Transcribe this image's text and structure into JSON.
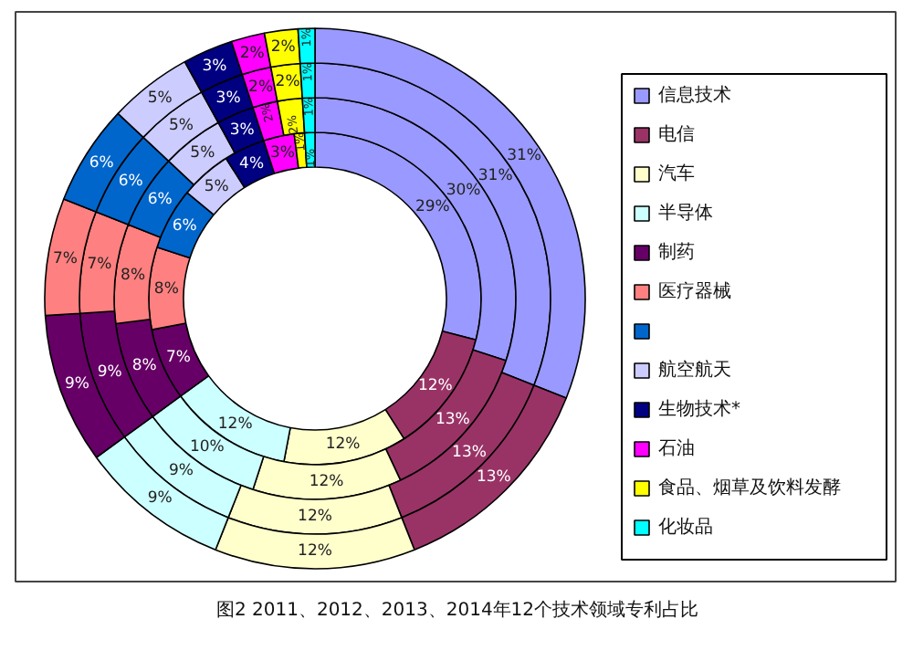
{
  "chart_data": {
    "type": "donut",
    "categories": [
      "信息技术",
      "电信",
      "汽车",
      "半导体",
      "制药",
      "医疗器械",
      null,
      "航空航天",
      "生物技术*",
      "石油",
      "食品、烟草及饮料发酵",
      "化妆品"
    ],
    "colors": [
      "#9999ff",
      "#993366",
      "#ffffcc",
      "#ccffff",
      "#660066",
      "#ff8080",
      "#0066cc",
      "#ccccff",
      "#000080",
      "#ff00ff",
      "#ffff00",
      "#00ffff"
    ],
    "series": [
      {
        "values": [
          29,
          12,
          12,
          12,
          7,
          8,
          6,
          5,
          4,
          3,
          1,
          1
        ],
        "value_labels": [
          "29%",
          "12%",
          "12%",
          "12%",
          "7%",
          "8%",
          "6%",
          "5%",
          "4%",
          "3%",
          "1%",
          "1%"
        ]
      },
      {
        "values": [
          30,
          13,
          12,
          10,
          8,
          8,
          6,
          5,
          3,
          2,
          2,
          1
        ],
        "value_labels": [
          "30%",
          "13%",
          "12%",
          "10%",
          "8%",
          "8%",
          "6%",
          "5%",
          "3%",
          "2%",
          "2%",
          "1%"
        ]
      },
      {
        "values": [
          31,
          13,
          12,
          9,
          9,
          7,
          6,
          5,
          3,
          2,
          2,
          1
        ],
        "value_labels": [
          "31%",
          "13%",
          "12%",
          "9%",
          "9%",
          "7%",
          "6%",
          "5%",
          "3%",
          "2%",
          "2%",
          "1%"
        ]
      },
      {
        "values": [
          31,
          13,
          12,
          9,
          9,
          7,
          6,
          5,
          3,
          2,
          2,
          1
        ],
        "value_labels": [
          "31%",
          "13%",
          "12%",
          "9%",
          "9%",
          "7%",
          "6%",
          "5%",
          "3%",
          "2%",
          "2%",
          "1%"
        ]
      }
    ],
    "legend": "right",
    "annotations": [
      "图2 2011、2012、2013、2014年12个技术领域专利占比"
    ]
  }
}
